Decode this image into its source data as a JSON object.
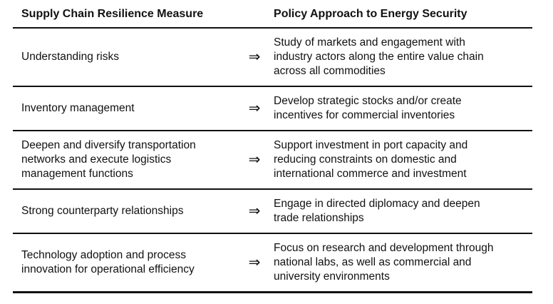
{
  "page": {
    "background": "#ffffff"
  },
  "colors": {
    "text": "#111111",
    "rule": "#111111",
    "background": "#ffffff"
  },
  "table": {
    "arrow_glyph": "⇒",
    "headers": {
      "measure": "Supply Chain Resilience Measure",
      "policy": "Policy Approach to Energy Security"
    },
    "rows": [
      {
        "measure": "Understanding risks",
        "policy": "Study of markets and engagement with\nindustry actors along the entire value chain\nacross all commodities"
      },
      {
        "measure": "Inventory management",
        "policy": "Develop strategic stocks and/or create\nincentives for commercial inventories"
      },
      {
        "measure": "Deepen and diversify transportation\nnetworks and execute logistics\nmanagement functions",
        "policy": "Support investment in port capacity and\nreducing constraints on domestic and\ninternational commerce and investment"
      },
      {
        "measure": "Strong counterparty relationships",
        "policy": "Engage in directed diplomacy and deepen\ntrade relationships"
      },
      {
        "measure": "Technology adoption and process\ninnovation for operational efficiency",
        "policy": "Focus on research and development through\nnational labs, as well as commercial and\nuniversity environments"
      }
    ]
  }
}
